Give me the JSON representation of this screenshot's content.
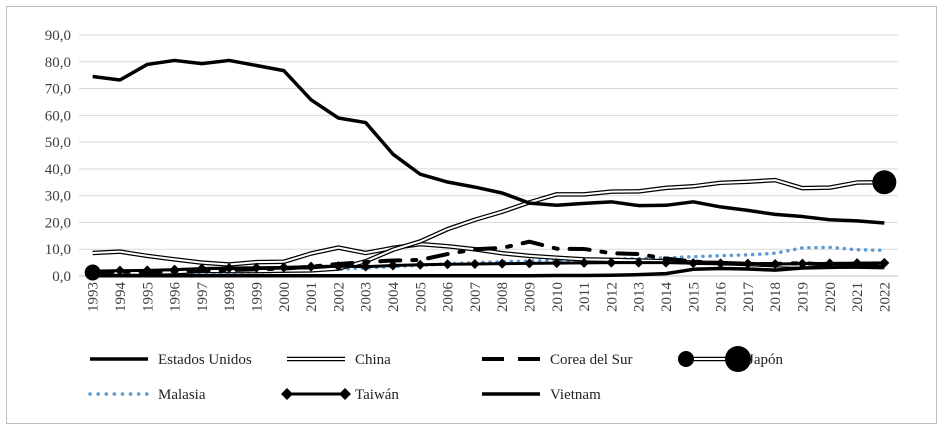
{
  "chart_data": {
    "type": "line",
    "title": "",
    "xlabel": "",
    "ylabel": "",
    "ylim": [
      0,
      90
    ],
    "yticks": [
      "0,0",
      "10,0",
      "20,0",
      "30,0",
      "40,0",
      "50,0",
      "60,0",
      "70,0",
      "80,0",
      "90,0"
    ],
    "x": [
      "1993",
      "1994",
      "1995",
      "1996",
      "1997",
      "1998",
      "1999",
      "2000",
      "2001",
      "2002",
      "2003",
      "2004",
      "2005",
      "2006",
      "2007",
      "2008",
      "2009",
      "2010",
      "2011",
      "2012",
      "2013",
      "2014",
      "2015",
      "2016",
      "2017",
      "2018",
      "2019",
      "2020",
      "2021",
      "2022"
    ],
    "grid": true,
    "legend_position": "bottom",
    "series": [
      {
        "name": "Estados Unidos",
        "style": "solid-thick",
        "color": "#000000",
        "values": [
          74.5,
          73.2,
          79.0,
          80.5,
          79.3,
          80.5,
          78.6,
          76.7,
          65.8,
          59.0,
          57.3,
          45.5,
          38.0,
          35.1,
          33.2,
          31.0,
          27.2,
          26.4,
          27.1,
          27.7,
          26.3,
          26.4,
          27.7,
          25.8,
          24.5,
          23.0,
          22.2,
          21.0,
          20.6,
          19.8
        ]
      },
      {
        "name": "China",
        "style": "double-line",
        "color": "#000000",
        "values": [
          8.6,
          9.1,
          7.5,
          6.2,
          5.0,
          4.3,
          5.2,
          5.3,
          8.4,
          10.6,
          8.6,
          10.5,
          11.9,
          11.1,
          10.0,
          8.5,
          7.5,
          6.8,
          6.2,
          6.0,
          5.8,
          5.5,
          5.0,
          4.8,
          4.5,
          4.0,
          3.8,
          3.6,
          3.5,
          3.3
        ]
      },
      {
        "name": "Corea del Sur",
        "style": "long-dash",
        "color": "#000000",
        "values": [
          1.5,
          1.6,
          1.4,
          1.8,
          2.0,
          2.2,
          2.5,
          2.8,
          3.5,
          4.5,
          5.2,
          5.8,
          6.0,
          8.2,
          10.0,
          10.5,
          12.8,
          10.2,
          10.1,
          8.5,
          8.2,
          6.5,
          5.4,
          4.8,
          4.5,
          4.5,
          4.8,
          4.2,
          4.5,
          4.0
        ]
      },
      {
        "name": "Japón",
        "style": "double-line-markers",
        "color": "#000000",
        "values": [
          1.3,
          1.2,
          1.2,
          1.4,
          1.9,
          1.8,
          1.8,
          2.0,
          2.1,
          2.8,
          5.5,
          9.8,
          12.9,
          17.5,
          21.0,
          24.0,
          27.5,
          30.5,
          30.5,
          31.5,
          31.6,
          32.9,
          33.5,
          34.8,
          35.2,
          35.8,
          32.8,
          33.0,
          34.9,
          35.0
        ]
      },
      {
        "name": "Malasia",
        "style": "dotted-blue",
        "color": "#5b9bd5",
        "values": [
          0.5,
          0.6,
          0.7,
          0.9,
          1.1,
          1.3,
          1.5,
          1.8,
          2.2,
          2.5,
          3.0,
          3.5,
          4.0,
          4.5,
          5.0,
          5.3,
          5.6,
          5.8,
          6.0,
          6.3,
          6.5,
          6.8,
          7.2,
          7.6,
          7.9,
          8.5,
          10.5,
          10.7,
          9.8,
          9.6
        ]
      },
      {
        "name": "Taiwán",
        "style": "solid-diamond",
        "color": "#000000",
        "values": [
          1.8,
          2.0,
          2.1,
          2.4,
          2.8,
          3.0,
          3.1,
          3.2,
          3.5,
          3.7,
          3.5,
          3.9,
          4.2,
          4.4,
          4.5,
          4.6,
          4.7,
          4.8,
          4.9,
          5.0,
          5.0,
          5.0,
          4.8,
          4.7,
          4.6,
          4.5,
          4.6,
          4.7,
          4.8,
          4.9
        ]
      },
      {
        "name": "Vietnam",
        "style": "solid-thick",
        "color": "#000000",
        "values": [
          0.1,
          0.1,
          0.1,
          0.1,
          0.1,
          0.1,
          0.1,
          0.1,
          0.1,
          0.1,
          0.1,
          0.1,
          0.1,
          0.1,
          0.1,
          0.1,
          0.1,
          0.2,
          0.2,
          0.3,
          0.5,
          0.9,
          2.5,
          2.8,
          2.6,
          2.2,
          3.0,
          3.2,
          3.4,
          3.6
        ]
      }
    ]
  }
}
